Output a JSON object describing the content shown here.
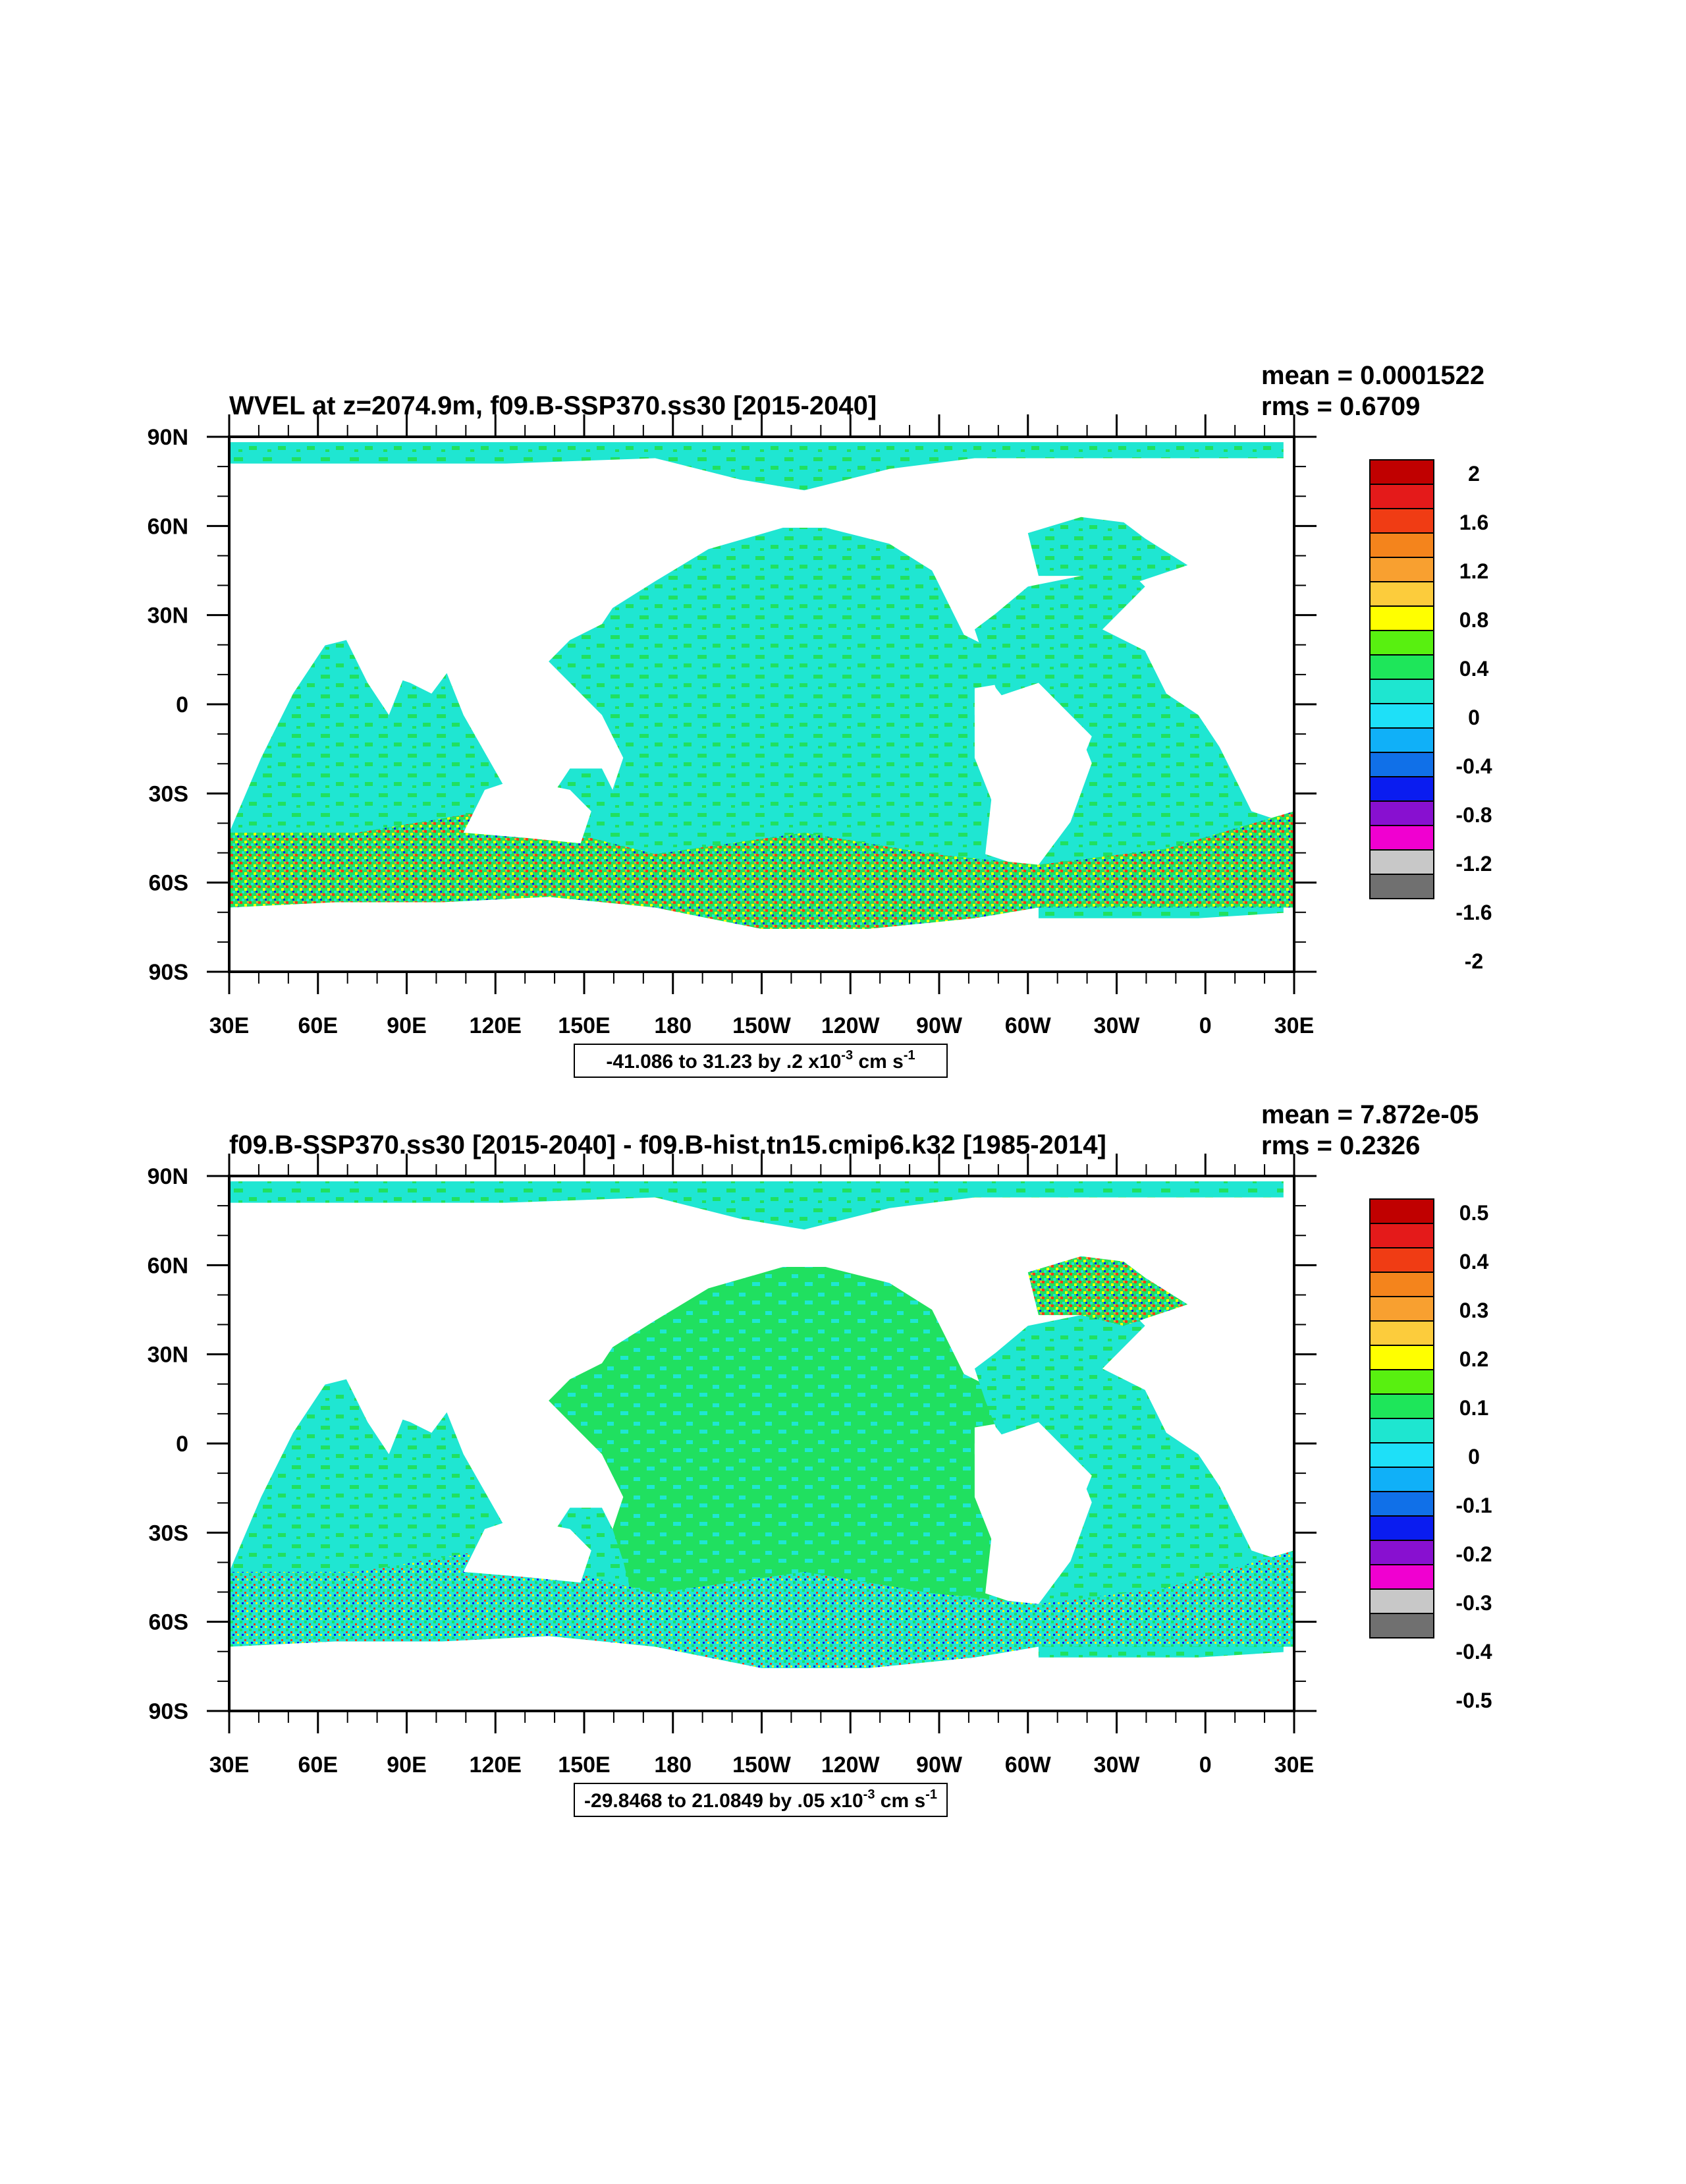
{
  "panels": [
    {
      "title": "WVEL at z=2074.9m, f09.B-SSP370.ss30 [2015-2040]",
      "mean": "mean = 0.0001522",
      "rms": "rms = 0.6709",
      "range": "-41.086 to 31.23 by .2 x10",
      "range_exp": "-3",
      "range_units": " cm s",
      "range_units_exp": "-1",
      "colorbar_labels": [
        "2",
        "1.6",
        "1.2",
        "0.8",
        "0.4",
        "0",
        "-0.4",
        "-0.8",
        "-1.2",
        "-1.6",
        "-2"
      ]
    },
    {
      "title": "f09.B-SSP370.ss30 [2015-2040] - f09.B-hist.tn15.cmip6.k32 [1985-2014]",
      "mean": "mean = 7.872e-05",
      "rms": "rms = 0.2326",
      "range": "-29.8468 to 21.0849 by .05 x10",
      "range_exp": "-3",
      "range_units": " cm s",
      "range_units_exp": "-1",
      "colorbar_labels": [
        "0.5",
        "0.4",
        "0.3",
        "0.2",
        "0.1",
        "0",
        "-0.1",
        "-0.2",
        "-0.3",
        "-0.4",
        "-0.5"
      ]
    }
  ],
  "axes": {
    "lat_labels": [
      "90N",
      "60N",
      "30N",
      "0",
      "30S",
      "60S",
      "90S"
    ],
    "lon_labels": [
      "30E",
      "60E",
      "90E",
      "120E",
      "150E",
      "180",
      "150W",
      "120W",
      "90W",
      "60W",
      "30W",
      "0",
      "30E"
    ]
  },
  "colors": {
    "ocean_base": "#1fe6d2",
    "ocean_green": "#20e060",
    "land": "#ffffff",
    "palette": [
      "#c00000",
      "#e41a1a",
      "#f03c14",
      "#f4841c",
      "#f8a030",
      "#fccc3c",
      "#ffff00",
      "#58f010",
      "#1ee65a",
      "#1ee6d0",
      "#1ee0f8",
      "#10b0f8",
      "#1070e8",
      "#0a1cf0",
      "#8810d0",
      "#f000d0",
      "#c8c8c8",
      "#707070"
    ]
  }
}
